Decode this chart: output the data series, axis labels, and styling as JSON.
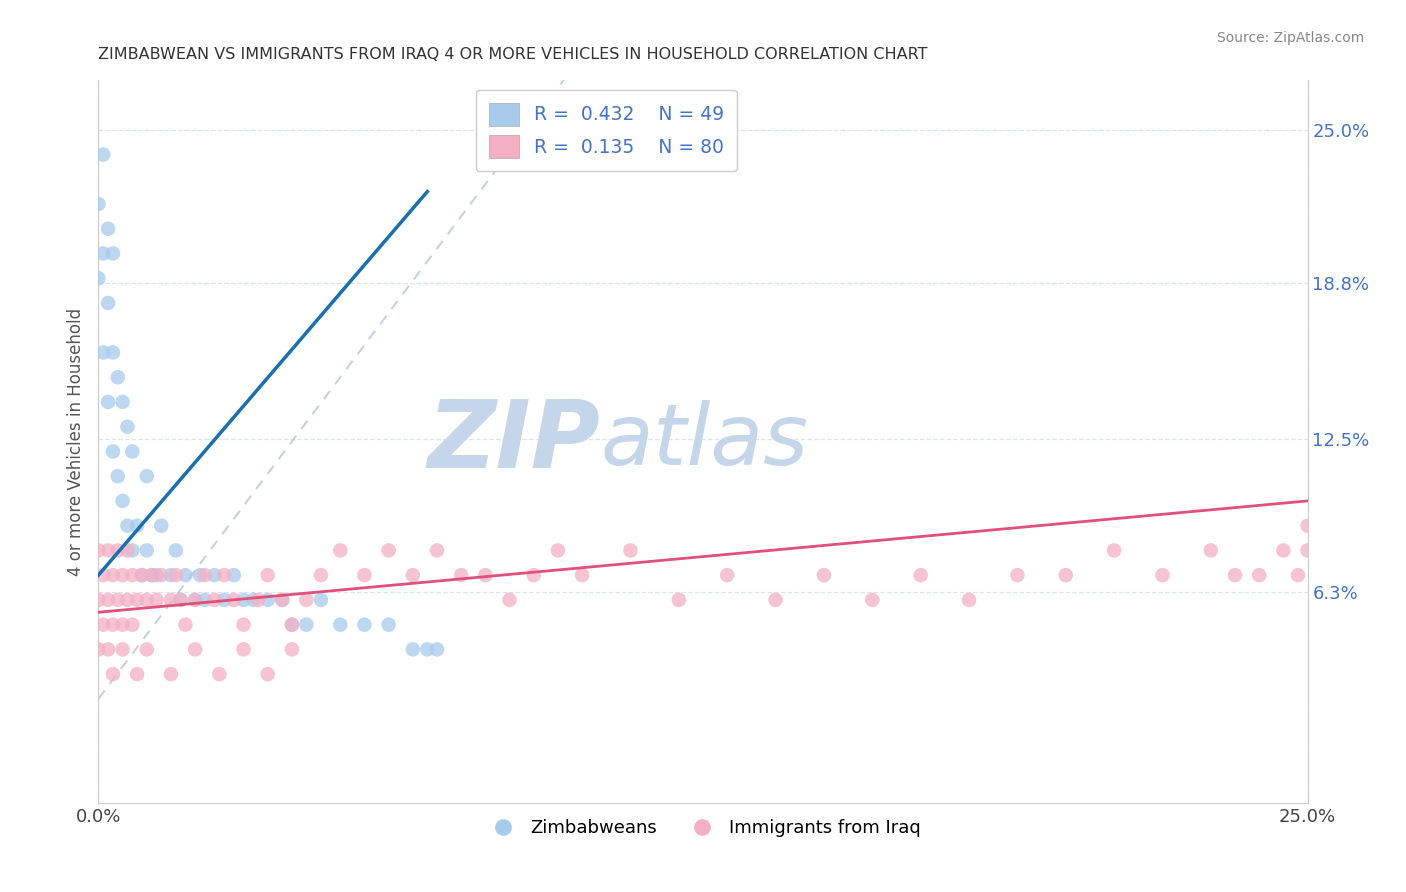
{
  "title": "ZIMBABWEAN VS IMMIGRANTS FROM IRAQ 4 OR MORE VEHICLES IN HOUSEHOLD CORRELATION CHART",
  "source": "Source: ZipAtlas.com",
  "ylabel": "4 or more Vehicles in Household",
  "xlim": [
    0.0,
    0.25
  ],
  "ylim": [
    -0.022,
    0.27
  ],
  "ytick_labels": [
    "6.3%",
    "12.5%",
    "18.8%",
    "25.0%"
  ],
  "ytick_values": [
    0.063,
    0.125,
    0.188,
    0.25
  ],
  "xtick_labels": [
    "0.0%",
    "25.0%"
  ],
  "xtick_values": [
    0.0,
    0.25
  ],
  "blue_R": 0.432,
  "blue_N": 49,
  "pink_R": 0.135,
  "pink_N": 80,
  "blue_scatter_color": "#a8caeb",
  "pink_scatter_color": "#f4afc4",
  "blue_line_color": "#1a6faf",
  "pink_line_color": "#e0507a",
  "gray_dash_color": "#b0bdd0",
  "watermark_zip_color": "#c5d5ea",
  "watermark_atlas_color": "#c5d5ea",
  "background_color": "#ffffff",
  "grid_color": "#dde4f0",
  "title_color": "#333333",
  "source_color": "#888888",
  "axis_label_color": "#555555",
  "tick_color": "#4472c4",
  "legend_text_color": "#4472c4",
  "blue_x": [
    0.0,
    0.0,
    0.001,
    0.001,
    0.001,
    0.002,
    0.002,
    0.002,
    0.003,
    0.003,
    0.003,
    0.004,
    0.004,
    0.005,
    0.005,
    0.006,
    0.006,
    0.007,
    0.007,
    0.008,
    0.009,
    0.01,
    0.01,
    0.011,
    0.012,
    0.013,
    0.015,
    0.016,
    0.017,
    0.018,
    0.02,
    0.021,
    0.022,
    0.024,
    0.026,
    0.028,
    0.03,
    0.032,
    0.035,
    0.038,
    0.04,
    0.043,
    0.046,
    0.05,
    0.055,
    0.06,
    0.065,
    0.068,
    0.07
  ],
  "blue_y": [
    0.19,
    0.22,
    0.16,
    0.2,
    0.24,
    0.14,
    0.18,
    0.21,
    0.12,
    0.16,
    0.2,
    0.11,
    0.15,
    0.1,
    0.14,
    0.09,
    0.13,
    0.08,
    0.12,
    0.09,
    0.07,
    0.08,
    0.11,
    0.07,
    0.07,
    0.09,
    0.07,
    0.08,
    0.06,
    0.07,
    0.06,
    0.07,
    0.06,
    0.07,
    0.06,
    0.07,
    0.06,
    0.06,
    0.06,
    0.06,
    0.05,
    0.05,
    0.06,
    0.05,
    0.05,
    0.05,
    0.04,
    0.04,
    0.04
  ],
  "pink_x": [
    0.0,
    0.0,
    0.0,
    0.001,
    0.001,
    0.002,
    0.002,
    0.002,
    0.003,
    0.003,
    0.004,
    0.004,
    0.005,
    0.005,
    0.006,
    0.006,
    0.007,
    0.007,
    0.008,
    0.009,
    0.01,
    0.011,
    0.012,
    0.013,
    0.015,
    0.016,
    0.017,
    0.018,
    0.02,
    0.022,
    0.024,
    0.026,
    0.028,
    0.03,
    0.033,
    0.035,
    0.038,
    0.04,
    0.043,
    0.046,
    0.05,
    0.055,
    0.06,
    0.065,
    0.07,
    0.075,
    0.08,
    0.085,
    0.09,
    0.095,
    0.1,
    0.11,
    0.12,
    0.13,
    0.14,
    0.15,
    0.16,
    0.17,
    0.18,
    0.19,
    0.2,
    0.21,
    0.22,
    0.23,
    0.235,
    0.24,
    0.245,
    0.248,
    0.25,
    0.25,
    0.003,
    0.005,
    0.008,
    0.01,
    0.015,
    0.02,
    0.025,
    0.03,
    0.035,
    0.04
  ],
  "pink_y": [
    0.08,
    0.06,
    0.04,
    0.07,
    0.05,
    0.08,
    0.06,
    0.04,
    0.07,
    0.05,
    0.08,
    0.06,
    0.07,
    0.05,
    0.08,
    0.06,
    0.07,
    0.05,
    0.06,
    0.07,
    0.06,
    0.07,
    0.06,
    0.07,
    0.06,
    0.07,
    0.06,
    0.05,
    0.06,
    0.07,
    0.06,
    0.07,
    0.06,
    0.05,
    0.06,
    0.07,
    0.06,
    0.05,
    0.06,
    0.07,
    0.08,
    0.07,
    0.08,
    0.07,
    0.08,
    0.07,
    0.07,
    0.06,
    0.07,
    0.08,
    0.07,
    0.08,
    0.06,
    0.07,
    0.06,
    0.07,
    0.06,
    0.07,
    0.06,
    0.07,
    0.07,
    0.08,
    0.07,
    0.08,
    0.07,
    0.07,
    0.08,
    0.07,
    0.09,
    0.08,
    0.03,
    0.04,
    0.03,
    0.04,
    0.03,
    0.04,
    0.03,
    0.04,
    0.03,
    0.04
  ]
}
